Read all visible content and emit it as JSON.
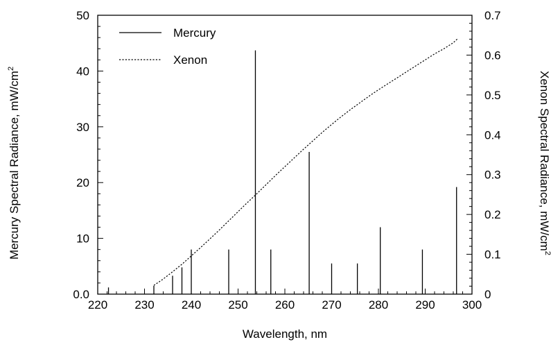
{
  "chart_data": {
    "type": "bar",
    "xlabel": "Wavelength,  nm",
    "ylabel_left": "Mercury Spectral Radiance,  mW/cm",
    "ylabel_left_sup": "2",
    "ylabel_right": "Xenon Spectral Radiance,  mW/cm",
    "ylabel_right_sup": "2",
    "xlim": [
      220,
      300
    ],
    "ylim_left": [
      0,
      50
    ],
    "ylim_right": [
      0,
      0.7
    ],
    "x_ticks": [
      220,
      230,
      240,
      250,
      260,
      270,
      280,
      290,
      300
    ],
    "x_tick_labels": [
      "220",
      "230",
      "240",
      "250",
      "260",
      "270",
      "280",
      "290",
      "300"
    ],
    "y_left_ticks": [
      0,
      10,
      20,
      30,
      40,
      50
    ],
    "y_left_tick_labels": [
      "0.0",
      "10",
      "20",
      "30",
      "40",
      "50"
    ],
    "y_right_ticks": [
      0,
      0.1,
      0.2,
      0.3,
      0.4,
      0.5,
      0.6,
      0.7
    ],
    "y_right_tick_labels": [
      "0",
      "0.1",
      "0.2",
      "0.3",
      "0.4",
      "0.5",
      "0.6",
      "0.7"
    ],
    "grid": false,
    "legend_position": "top-left",
    "series": [
      {
        "name": "Mercury",
        "style": "solid",
        "kind": "spectral-lines",
        "axis": "left",
        "color": "#000000",
        "x": [
          222.3,
          232,
          236,
          238,
          240,
          248,
          253.7,
          257,
          265.2,
          270,
          275.5,
          280.4,
          289.4,
          296.7
        ],
        "y": [
          1.2,
          1.5,
          3.3,
          4.8,
          8.0,
          8.0,
          43.7,
          8.0,
          25.5,
          5.5,
          5.5,
          12.0,
          8.0,
          19.2
        ]
      },
      {
        "name": "Xenon",
        "style": "dotted",
        "kind": "curve",
        "axis": "right",
        "color": "#000000",
        "x": [
          232,
          234,
          236,
          238,
          240,
          242,
          244,
          246,
          248,
          250,
          252,
          254,
          256,
          258,
          260,
          262,
          264,
          266,
          268,
          270,
          272,
          274,
          276,
          278,
          280,
          282,
          284,
          286,
          288,
          290,
          292,
          294,
          296,
          297
        ],
        "y": [
          0.022,
          0.038,
          0.056,
          0.075,
          0.096,
          0.117,
          0.139,
          0.161,
          0.184,
          0.207,
          0.23,
          0.252,
          0.275,
          0.298,
          0.32,
          0.342,
          0.364,
          0.385,
          0.406,
          0.426,
          0.445,
          0.463,
          0.48,
          0.497,
          0.513,
          0.528,
          0.543,
          0.558,
          0.573,
          0.588,
          0.603,
          0.616,
          0.631,
          0.642
        ]
      }
    ]
  }
}
